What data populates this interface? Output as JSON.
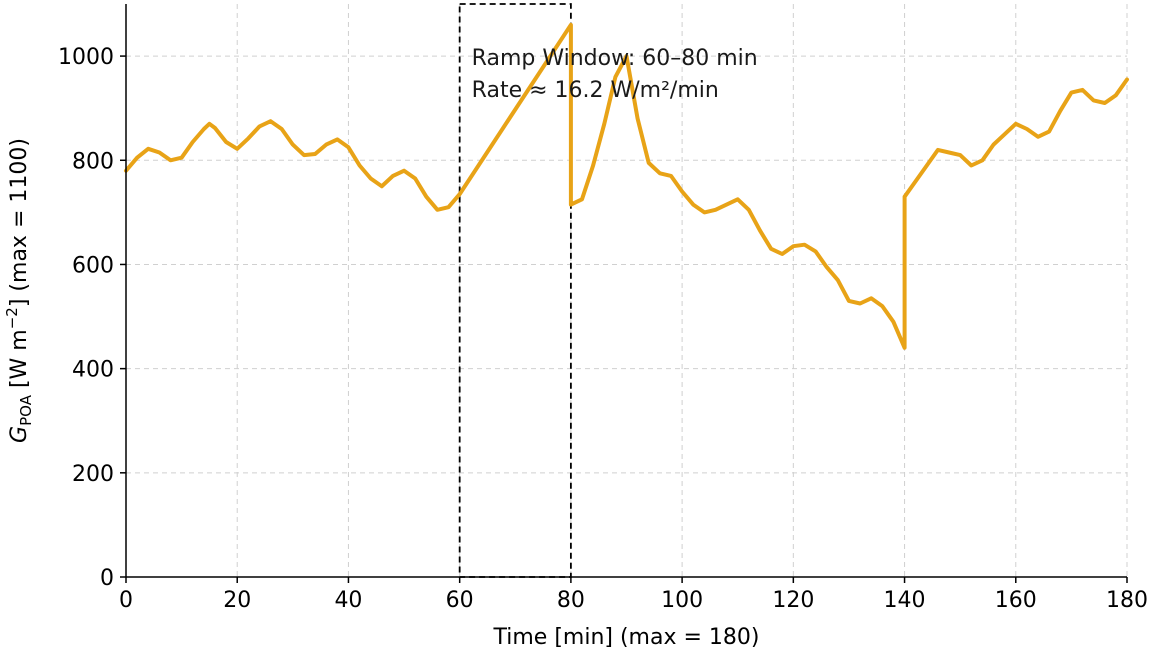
{
  "chart_data": {
    "type": "line",
    "title": "",
    "xlabel": "Time [min] (max = 180)",
    "ylabel": {
      "symbol": "G",
      "subscript": "POA",
      "rest": " [W m",
      "superscript": "−2",
      "tail": "] (max = 1100)"
    },
    "xlim": [
      0,
      180
    ],
    "ylim": [
      0,
      1100
    ],
    "x_ticks": [
      0,
      20,
      40,
      60,
      80,
      100,
      120,
      140,
      160,
      180
    ],
    "y_ticks": [
      0,
      200,
      400,
      600,
      800,
      1000
    ],
    "grid": true,
    "series": [
      {
        "color": "#e8a317",
        "x": [
          0,
          2,
          4,
          6,
          8,
          10,
          12,
          14,
          15,
          16,
          18,
          20,
          22,
          24,
          26,
          28,
          30,
          32,
          34,
          36,
          38,
          40,
          42,
          44,
          46,
          48,
          50,
          52,
          54,
          56,
          58,
          60,
          80,
          80,
          82,
          84,
          86,
          88,
          90,
          92,
          94,
          96,
          98,
          100,
          102,
          104,
          106,
          108,
          110,
          112,
          114,
          116,
          118,
          120,
          122,
          124,
          126,
          128,
          130,
          132,
          134,
          136,
          138,
          140,
          140,
          142,
          144,
          146,
          148,
          150,
          152,
          154,
          156,
          158,
          160,
          162,
          164,
          166,
          168,
          170,
          172,
          174,
          176,
          178,
          180
        ],
        "y": [
          780,
          805,
          822,
          815,
          800,
          805,
          835,
          860,
          870,
          862,
          835,
          822,
          842,
          865,
          875,
          860,
          830,
          810,
          812,
          830,
          840,
          825,
          790,
          765,
          750,
          770,
          780,
          765,
          730,
          705,
          710,
          735,
          1060,
          715,
          725,
          790,
          870,
          960,
          1000,
          880,
          795,
          775,
          770,
          740,
          715,
          700,
          705,
          715,
          725,
          705,
          665,
          630,
          620,
          635,
          638,
          625,
          595,
          570,
          530,
          525,
          535,
          520,
          490,
          440,
          730,
          760,
          790,
          820,
          815,
          810,
          790,
          800,
          830,
          850,
          870,
          860,
          845,
          855,
          895,
          930,
          935,
          915,
          910,
          925,
          955
        ]
      }
    ],
    "annotations": [
      {
        "type": "box",
        "x_range": [
          60,
          80
        ],
        "y_range": [
          0,
          1100
        ],
        "lines": [
          "Ramp Window: 60–80 min",
          "Rate ≈ 16.2 W/m²/min"
        ]
      }
    ]
  }
}
